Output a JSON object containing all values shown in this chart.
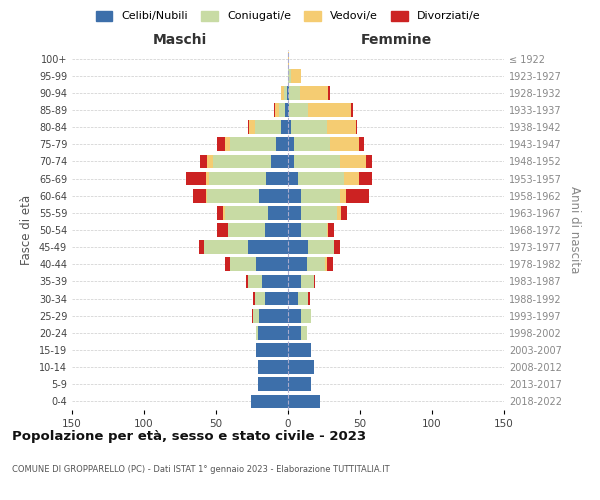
{
  "age_groups": [
    "0-4",
    "5-9",
    "10-14",
    "15-19",
    "20-24",
    "25-29",
    "30-34",
    "35-39",
    "40-44",
    "45-49",
    "50-54",
    "55-59",
    "60-64",
    "65-69",
    "70-74",
    "75-79",
    "80-84",
    "85-89",
    "90-94",
    "95-99",
    "100+"
  ],
  "birth_years": [
    "2018-2022",
    "2013-2017",
    "2008-2012",
    "2003-2007",
    "1998-2002",
    "1993-1997",
    "1988-1992",
    "1983-1987",
    "1978-1982",
    "1973-1977",
    "1968-1972",
    "1963-1967",
    "1958-1962",
    "1953-1957",
    "1948-1952",
    "1943-1947",
    "1938-1942",
    "1933-1937",
    "1928-1932",
    "1923-1927",
    "≤ 1922"
  ],
  "colors": {
    "celibe": "#3d6faa",
    "coniugato": "#c8dba4",
    "vedovo": "#f5cc72",
    "divorziato": "#cc2222"
  },
  "maschi": {
    "celibe": [
      26,
      21,
      21,
      22,
      21,
      20,
      16,
      18,
      22,
      28,
      16,
      14,
      20,
      15,
      12,
      8,
      5,
      2,
      1,
      0,
      0
    ],
    "coniugato": [
      0,
      0,
      0,
      0,
      1,
      4,
      7,
      10,
      18,
      30,
      26,
      30,
      36,
      40,
      40,
      32,
      18,
      4,
      2,
      0,
      0
    ],
    "vedovo": [
      0,
      0,
      0,
      0,
      0,
      0,
      0,
      0,
      0,
      0,
      0,
      1,
      1,
      2,
      4,
      4,
      4,
      3,
      2,
      0,
      0
    ],
    "divorziato": [
      0,
      0,
      0,
      0,
      0,
      1,
      1,
      1,
      4,
      4,
      7,
      4,
      9,
      14,
      5,
      5,
      1,
      1,
      0,
      0,
      0
    ]
  },
  "femmine": {
    "celibe": [
      22,
      16,
      18,
      16,
      9,
      9,
      7,
      9,
      13,
      14,
      9,
      9,
      9,
      7,
      4,
      4,
      2,
      1,
      1,
      0,
      0
    ],
    "coniugato": [
      0,
      0,
      0,
      0,
      4,
      7,
      7,
      9,
      13,
      18,
      18,
      25,
      27,
      32,
      32,
      25,
      25,
      13,
      7,
      2,
      0
    ],
    "vedovo": [
      0,
      0,
      0,
      0,
      0,
      0,
      0,
      0,
      1,
      0,
      1,
      3,
      4,
      10,
      18,
      20,
      20,
      30,
      20,
      7,
      1
    ],
    "divorziato": [
      0,
      0,
      0,
      0,
      0,
      0,
      1,
      1,
      4,
      4,
      4,
      4,
      16,
      9,
      4,
      4,
      1,
      1,
      1,
      0,
      0
    ]
  },
  "xlim": 150,
  "title": "Popolazione per età, sesso e stato civile - 2023",
  "subtitle": "COMUNE DI GROPPARELLO (PC) - Dati ISTAT 1° gennaio 2023 - Elaborazione TUTTITALIA.IT",
  "ylabel_left": "Fasce di età",
  "ylabel_right": "Anni di nascita",
  "xlabel_left": "Maschi",
  "xlabel_right": "Femmine",
  "legend_labels": [
    "Celibi/Nubili",
    "Coniugati/e",
    "Vedovi/e",
    "Divorziati/e"
  ],
  "grid_color": "#cccccc"
}
